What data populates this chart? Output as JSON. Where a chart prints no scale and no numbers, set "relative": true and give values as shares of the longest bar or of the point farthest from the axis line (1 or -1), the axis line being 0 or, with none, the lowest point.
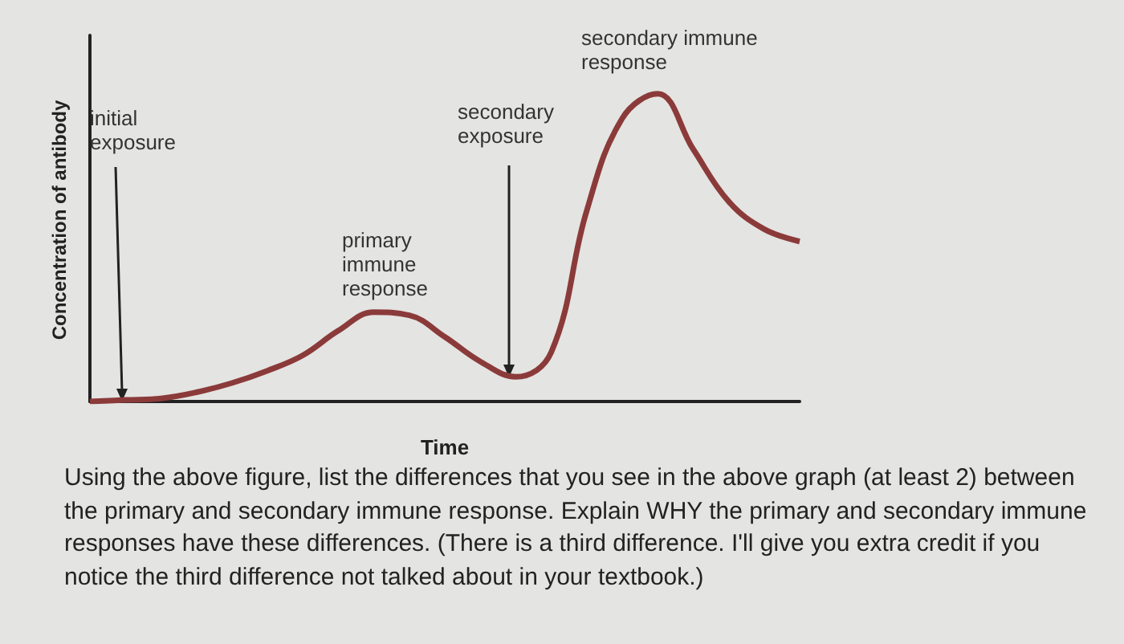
{
  "chart_data": {
    "type": "line",
    "relative": true,
    "xlabel": "Time",
    "ylabel": "Concentration of antibody",
    "categories": [
      null,
      null,
      null,
      null,
      null,
      null,
      null,
      null,
      null,
      null,
      null,
      null,
      null,
      null,
      null,
      null,
      null,
      null,
      null,
      null,
      null
    ],
    "series": [
      {
        "color": "#8b3a3a",
        "values": [
          0,
          0.005,
          0.01,
          0.03,
          0.06,
          0.1,
          0.15,
          0.23,
          0.29,
          0.28,
          0.21,
          0.13,
          0.08,
          0.16,
          0.62,
          0.92,
          1,
          0.82,
          0.65,
          0.56,
          0.52
        ]
      }
    ],
    "annotations": [
      "initial exposure",
      "secondary exposure",
      "primary immune response",
      "secondary immune response",
      "Using the above figure, list the differences that you see in the above graph (at least 2) between the primary and secondary immune response. Explain WHY the primary and secondary immune responses have these differences. (There is a third difference. I'll give you extra credit if you notice the third difference not talked about in your textbook.)"
    ],
    "marker": "none"
  }
}
